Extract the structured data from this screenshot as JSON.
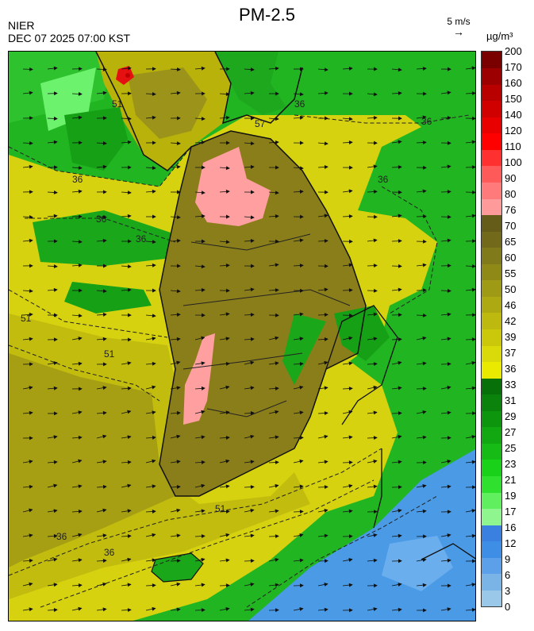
{
  "header": {
    "title": "PM-2.5",
    "source": "NIER",
    "timestamp": "DEC 07 2025 07:00 KST",
    "wind_reference": "5 m/s",
    "unit": "µg/m³"
  },
  "legend": {
    "levels": [
      "0",
      "3",
      "6",
      "9",
      "12",
      "16",
      "17",
      "19",
      "21",
      "23",
      "25",
      "27",
      "29",
      "31",
      "33",
      "36",
      "37",
      "39",
      "42",
      "46",
      "50",
      "55",
      "60",
      "65",
      "70",
      "76",
      "80",
      "90",
      "100",
      "110",
      "120",
      "140",
      "150",
      "160",
      "170",
      "200"
    ],
    "colors": [
      "#99c8e9",
      "#7ab4e6",
      "#5ba0e8",
      "#3e8ee6",
      "#3a80e0",
      "#8ff58f",
      "#5fef5f",
      "#2fe02f",
      "#1ad11a",
      "#16bb16",
      "#12a812",
      "#0e950e",
      "#0b820b",
      "#087008",
      "#eaea00",
      "#dada0a",
      "#cbc80c",
      "#bdb90e",
      "#ada912",
      "#9e9a16",
      "#8f8a18",
      "#807a1a",
      "#726a1a",
      "#645c18",
      "#ff9a9a",
      "#ff7a7a",
      "#ff5a5a",
      "#ff3030",
      "#ff0000",
      "#e80000",
      "#d00000",
      "#b80000",
      "#9c0000",
      "#7a0000"
    ]
  },
  "map": {
    "contour_labels": [
      "36",
      "51",
      "57",
      "36",
      "36",
      "36",
      "36",
      "51",
      "36",
      "51",
      "36",
      "36",
      "51"
    ],
    "colors": {
      "sea_green": "#22b522",
      "light_green": "#7ef27e",
      "yellow": "#d6d210",
      "olive_yellow": "#b8b20a",
      "olive": "#8a7e1a",
      "pink": "#ff9f9f",
      "red": "#e51010",
      "blue": "#4a9ae6",
      "light_blue": "#a3cbee",
      "border": "#111111"
    }
  }
}
